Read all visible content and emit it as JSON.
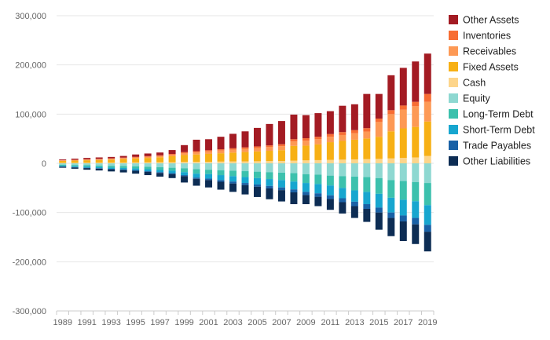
{
  "chart_data": {
    "type": "bar",
    "stacked": true,
    "title": "",
    "xlabel": "",
    "ylabel": "",
    "ylim": [
      -300000,
      300000
    ],
    "yticks": [
      300000,
      200000,
      100000,
      0,
      -100000,
      -200000,
      -300000
    ],
    "ytick_labels": [
      "300,000",
      "200,000",
      "100,000",
      "0",
      "-100,000",
      "-200,000",
      "-300,000"
    ],
    "grid": true,
    "legend_position": "right",
    "categories": [
      1989,
      1990,
      1991,
      1992,
      1993,
      1994,
      1995,
      1996,
      1997,
      1998,
      1999,
      2000,
      2001,
      2002,
      2003,
      2004,
      2005,
      2006,
      2007,
      2008,
      2009,
      2010,
      2011,
      2012,
      2013,
      2014,
      2015,
      2016,
      2017,
      2018,
      2019
    ],
    "xtick_labels": [
      "1989",
      "1991",
      "1993",
      "1995",
      "1997",
      "1999",
      "2001",
      "2003",
      "2005",
      "2007",
      "2009",
      "2011",
      "2013",
      "2015",
      "2017",
      "2019"
    ],
    "assets_series": [
      {
        "name": "Cash",
        "color": "#fdd58b",
        "values": [
          1000,
          1000,
          1200,
          1300,
          1500,
          1600,
          1800,
          2000,
          2200,
          2400,
          2800,
          3000,
          3200,
          3500,
          3800,
          4000,
          4200,
          4500,
          4800,
          5500,
          6000,
          6500,
          7000,
          7500,
          8000,
          8500,
          9000,
          10000,
          11000,
          12000,
          15000
        ]
      },
      {
        "name": "Fixed Assets",
        "color": "#f7b015",
        "values": [
          4000,
          4500,
          5000,
          5500,
          6000,
          7000,
          8000,
          9000,
          10000,
          12000,
          14000,
          15000,
          16000,
          17000,
          18000,
          19000,
          20000,
          21000,
          22000,
          30000,
          30000,
          32000,
          36000,
          38000,
          40000,
          42000,
          45000,
          55000,
          60000,
          62000,
          70000
        ]
      },
      {
        "name": "Receivables",
        "color": "#fd9955",
        "values": [
          1000,
          1200,
          1400,
          1500,
          1700,
          2000,
          2200,
          2400,
          2700,
          3200,
          4000,
          4500,
          5000,
          5500,
          6000,
          6500,
          7000,
          7500,
          8000,
          9000,
          10000,
          10500,
          11000,
          12000,
          13000,
          14000,
          30000,
          35000,
          38000,
          42000,
          40000
        ]
      },
      {
        "name": "Inventories",
        "color": "#f76d33",
        "values": [
          500,
          600,
          700,
          800,
          900,
          1000,
          1100,
          1200,
          1300,
          1500,
          2000,
          2200,
          2400,
          2600,
          2800,
          3000,
          3200,
          3500,
          4000,
          4500,
          5000,
          5000,
          5500,
          6000,
          6500,
          7000,
          7000,
          8000,
          8500,
          9000,
          16000
        ]
      },
      {
        "name": "Other Assets",
        "color": "#a31b23",
        "values": [
          1500,
          2200,
          2700,
          2900,
          2900,
          3400,
          4900,
          5400,
          5800,
          7900,
          14200,
          23300,
          22400,
          25400,
          29400,
          32500,
          37600,
          43500,
          47200,
          50000,
          47000,
          48000,
          46500,
          53500,
          52500,
          69500,
          50000,
          71000,
          76500,
          82000,
          82000
        ]
      }
    ],
    "liabilities_series": [
      {
        "name": "Equity",
        "color": "#8ed8d1",
        "values": [
          -3000,
          -3500,
          -4000,
          -4500,
          -5000,
          -5500,
          -6000,
          -7000,
          -8000,
          -9000,
          -10000,
          -12000,
          -13000,
          -14000,
          -15000,
          -16000,
          -17000,
          -18000,
          -19000,
          -20000,
          -22000,
          -23000,
          -25000,
          -26000,
          -27000,
          -28000,
          -30000,
          -34000,
          -36000,
          -38000,
          -40000
        ]
      },
      {
        "name": "Long-Term Debt",
        "color": "#3cc1ad",
        "values": [
          -2000,
          -2500,
          -3000,
          -3300,
          -3700,
          -4000,
          -4500,
          -5000,
          -5500,
          -6000,
          -8000,
          -9000,
          -9000,
          -10000,
          -11000,
          -12000,
          -13000,
          -14000,
          -15000,
          -17000,
          -18000,
          -19000,
          -20000,
          -24000,
          -28000,
          -30000,
          -32000,
          -36000,
          -38000,
          -39000,
          -45000
        ]
      },
      {
        "name": "Short-Term Debt",
        "color": "#17a6cf",
        "values": [
          -1500,
          -1800,
          -2000,
          -2200,
          -2500,
          -3000,
          -3500,
          -4000,
          -4500,
          -5000,
          -6000,
          -8000,
          -9000,
          -10000,
          -11000,
          -12000,
          -13000,
          -14000,
          -15000,
          -16000,
          -18000,
          -19000,
          -20000,
          -21000,
          -23000,
          -25000,
          -28000,
          -30000,
          -32000,
          -34000,
          -40000
        ]
      },
      {
        "name": "Trade Payables",
        "color": "#1961a6",
        "values": [
          -500,
          -600,
          -700,
          -800,
          -900,
          -1000,
          -1200,
          -1400,
          -1600,
          -1800,
          -2000,
          -2500,
          -3000,
          -3500,
          -4000,
          -4200,
          -4500,
          -5000,
          -5500,
          -6000,
          -6500,
          -7000,
          -7500,
          -8000,
          -9000,
          -9500,
          -10000,
          -11000,
          -12000,
          -13000,
          -14000
        ]
      },
      {
        "name": "Other Liabilities",
        "color": "#0d2d54",
        "values": [
          -2000,
          -2600,
          -3300,
          -3700,
          -4400,
          -5000,
          -5800,
          -6600,
          -7400,
          -8200,
          -13000,
          -14000,
          -15000,
          -16000,
          -17000,
          -19000,
          -21000,
          -22000,
          -23000,
          -24000,
          -18500,
          -19000,
          -22000,
          -23000,
          -24000,
          -26500,
          -35000,
          -37000,
          -40000,
          -40000,
          -40000
        ]
      }
    ],
    "legend": [
      {
        "name": "Other Assets",
        "color": "#a31b23"
      },
      {
        "name": "Inventories",
        "color": "#f76d33"
      },
      {
        "name": "Receivables",
        "color": "#fd9955"
      },
      {
        "name": "Fixed Assets",
        "color": "#f7b015"
      },
      {
        "name": "Cash",
        "color": "#fdd58b"
      },
      {
        "name": "Equity",
        "color": "#8ed8d1"
      },
      {
        "name": "Long-Term Debt",
        "color": "#3cc1ad"
      },
      {
        "name": "Short-Term Debt",
        "color": "#17a6cf"
      },
      {
        "name": "Trade Payables",
        "color": "#1961a6"
      },
      {
        "name": "Other Liabilities",
        "color": "#0d2d54"
      }
    ]
  }
}
